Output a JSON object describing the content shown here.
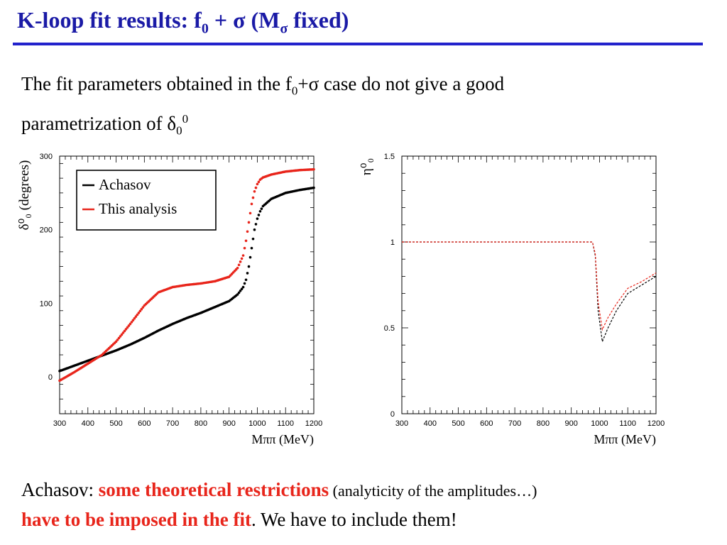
{
  "slide": {
    "title_main": "K-loop fit results: f",
    "title_sub0": "0",
    "title_mid": " + σ (M",
    "title_sub_sigma": "σ",
    "title_end": " fixed)",
    "intro_a": "The fit parameters obtained in the f",
    "intro_sub0": "0",
    "intro_b": "+σ case do not give a good",
    "intro_c": "parametrization of δ",
    "intro_delta_sub": "0",
    "intro_delta_sup": "0",
    "bottom_a": "Achasov: ",
    "bottom_emph1": "some theoretical restrictions",
    "bottom_small": " (analyticity of the amplitudes…)",
    "bottom_emph2": "have to be imposed in the fit",
    "bottom_end": ". We have to include them!"
  },
  "colors": {
    "title": "#1a1aa6",
    "rule": "#2222cc",
    "red": "#e8251b",
    "black": "#000000"
  },
  "chart_data": [
    {
      "type": "scatter",
      "ylabel": "δ⁰₀ (degrees)",
      "xlabel": "Mππ (MeV)",
      "xlim": [
        300,
        1200
      ],
      "ylim": [
        -50,
        300
      ],
      "xticks": [
        300,
        400,
        500,
        600,
        700,
        800,
        900,
        1000,
        1100,
        1200
      ],
      "yticks": [
        0,
        100,
        200,
        300
      ],
      "legend": {
        "placement": "top-left",
        "entries": [
          "Achasov",
          "This analysis"
        ]
      },
      "series": [
        {
          "name": "Achasov",
          "color": "#000000",
          "x": [
            300,
            350,
            400,
            450,
            500,
            550,
            600,
            650,
            700,
            750,
            800,
            850,
            900,
            930,
            950,
            960,
            970,
            980,
            990,
            1000,
            1010,
            1020,
            1050,
            1100,
            1150,
            1200
          ],
          "y": [
            8,
            15,
            22,
            29,
            36,
            44,
            53,
            63,
            72,
            80,
            87,
            95,
            103,
            112,
            122,
            132,
            150,
            175,
            200,
            215,
            225,
            232,
            242,
            250,
            254,
            257
          ]
        },
        {
          "name": "This analysis",
          "color": "#e8251b",
          "x": [
            300,
            350,
            400,
            450,
            500,
            550,
            600,
            650,
            700,
            750,
            800,
            850,
            900,
            930,
            950,
            960,
            970,
            980,
            990,
            1000,
            1010,
            1020,
            1050,
            1100,
            1150,
            1200
          ],
          "y": [
            -5,
            6,
            18,
            30,
            48,
            72,
            97,
            115,
            122,
            125,
            127,
            130,
            136,
            148,
            165,
            185,
            210,
            235,
            252,
            262,
            268,
            271,
            275,
            279,
            281,
            282
          ]
        }
      ]
    },
    {
      "type": "line",
      "ylabel": "η⁰₀",
      "xlabel": "Mππ (MeV)",
      "xlim": [
        300,
        1200
      ],
      "ylim": [
        0,
        1.5
      ],
      "xticks": [
        300,
        400,
        500,
        600,
        700,
        800,
        900,
        1000,
        1100,
        1200
      ],
      "yticks": [
        0,
        0.5,
        1,
        1.5
      ],
      "series": [
        {
          "color": "#000000",
          "x": [
            300,
            975,
            985,
            995,
            1010,
            1030,
            1060,
            1100,
            1150,
            1200
          ],
          "y": [
            1.0,
            1.0,
            0.92,
            0.6,
            0.42,
            0.5,
            0.6,
            0.7,
            0.75,
            0.8
          ]
        },
        {
          "color": "#e8251b",
          "x": [
            300,
            975,
            985,
            995,
            1010,
            1030,
            1060,
            1100,
            1150,
            1200
          ],
          "y": [
            1.0,
            1.0,
            0.93,
            0.65,
            0.49,
            0.56,
            0.64,
            0.73,
            0.77,
            0.82
          ]
        }
      ]
    }
  ]
}
